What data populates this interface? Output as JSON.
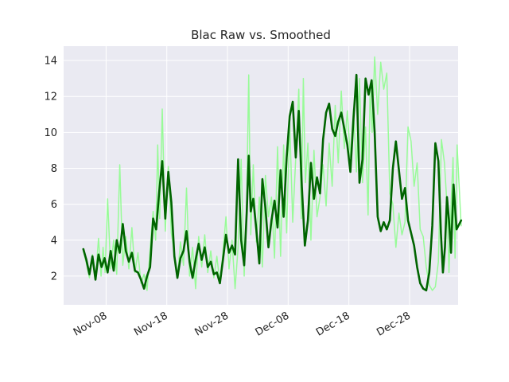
{
  "chart_data": {
    "type": "line",
    "title": "Blac Raw vs. Smoothed",
    "xlabel": "",
    "ylabel": "",
    "x_axis": {
      "kind": "date",
      "range": [
        "2023-11-01",
        "2024-01-05"
      ],
      "tick_labels": [
        "Nov-08",
        "Nov-18",
        "Nov-28",
        "Dec-08",
        "Dec-18",
        "Dec-28"
      ],
      "tick_dates": [
        "2023-11-08",
        "2023-11-18",
        "2023-11-28",
        "2023-12-08",
        "2023-12-18",
        "2023-12-28"
      ]
    },
    "y_axis": {
      "range": [
        0.4,
        14.8
      ],
      "ticks": [
        2,
        4,
        6,
        8,
        10,
        12,
        14
      ],
      "tick_labels": [
        "2",
        "4",
        "6",
        "8",
        "10",
        "12",
        "14"
      ]
    },
    "grid": true,
    "legend": "none",
    "background": "#eaeaf2",
    "series": [
      {
        "style": "raw",
        "color": "#98fb98",
        "points": [
          [
            "2023-11-04",
            3.4
          ],
          [
            "2023-11-04",
            2.7
          ],
          [
            "2023-11-05",
            1.9
          ],
          [
            "2023-11-05",
            3.2
          ],
          [
            "2023-11-06",
            1.8
          ],
          [
            "2023-11-06",
            4.1
          ],
          [
            "2023-11-07",
            2.0
          ],
          [
            "2023-11-07",
            3.6
          ],
          [
            "2023-11-07",
            2.2
          ],
          [
            "2023-11-08",
            6.3
          ],
          [
            "2023-11-08",
            2.4
          ],
          [
            "2023-11-09",
            4.0
          ],
          [
            "2023-11-09",
            2.1
          ],
          [
            "2023-11-10",
            8.2
          ],
          [
            "2023-11-10",
            2.6
          ],
          [
            "2023-11-11",
            4.2
          ],
          [
            "2023-11-11",
            2.4
          ],
          [
            "2023-11-12",
            4.7
          ],
          [
            "2023-11-12",
            2.2
          ],
          [
            "2023-11-13",
            3.3
          ],
          [
            "2023-11-13",
            1.6
          ],
          [
            "2023-11-14",
            2.1
          ],
          [
            "2023-11-14",
            1.2
          ],
          [
            "2023-11-15",
            3.5
          ],
          [
            "2023-11-15",
            5.6
          ],
          [
            "2023-11-16",
            4.0
          ],
          [
            "2023-11-16",
            9.3
          ],
          [
            "2023-11-16",
            5.2
          ],
          [
            "2023-11-17",
            11.3
          ],
          [
            "2023-11-17",
            4.5
          ],
          [
            "2023-11-18",
            8.1
          ],
          [
            "2023-11-18",
            4.4
          ],
          [
            "2023-11-19",
            3.3
          ],
          [
            "2023-11-19",
            1.9
          ],
          [
            "2023-11-20",
            3.9
          ],
          [
            "2023-11-20",
            2.6
          ],
          [
            "2023-11-21",
            6.9
          ],
          [
            "2023-11-21",
            2.0
          ],
          [
            "2023-11-22",
            3.6
          ],
          [
            "2023-11-22",
            1.3
          ],
          [
            "2023-11-23",
            4.2
          ],
          [
            "2023-11-23",
            2.5
          ],
          [
            "2023-11-24",
            4.3
          ],
          [
            "2023-11-24",
            2.2
          ],
          [
            "2023-11-25",
            3.4
          ],
          [
            "2023-11-25",
            1.9
          ],
          [
            "2023-11-26",
            3.1
          ],
          [
            "2023-11-26",
            1.6
          ],
          [
            "2023-11-27",
            3.3
          ],
          [
            "2023-11-27",
            5.3
          ],
          [
            "2023-11-28",
            2.4
          ],
          [
            "2023-11-28",
            4.0
          ],
          [
            "2023-11-29",
            1.3
          ],
          [
            "2023-11-29",
            3.6
          ],
          [
            "2023-11-30",
            8.5
          ],
          [
            "2023-11-30",
            2.0
          ],
          [
            "2023-12-01",
            6.2
          ],
          [
            "2023-12-01",
            13.2
          ],
          [
            "2023-12-01",
            4.3
          ],
          [
            "2023-12-02",
            8.2
          ],
          [
            "2023-12-02",
            3.9
          ],
          [
            "2023-12-03",
            6.4
          ],
          [
            "2023-12-03",
            2.5
          ],
          [
            "2023-12-04",
            7.6
          ],
          [
            "2023-12-04",
            5.3
          ],
          [
            "2023-12-05",
            6.4
          ],
          [
            "2023-12-05",
            3.0
          ],
          [
            "2023-12-06",
            9.2
          ],
          [
            "2023-12-06",
            3.1
          ],
          [
            "2023-12-07",
            9.3
          ],
          [
            "2023-12-07",
            4.4
          ],
          [
            "2023-12-08",
            10.6
          ],
          [
            "2023-12-08",
            5.0
          ],
          [
            "2023-12-09",
            8.6
          ],
          [
            "2023-12-09",
            12.4
          ],
          [
            "2023-12-10",
            5.2
          ],
          [
            "2023-12-10",
            13.0
          ],
          [
            "2023-12-10",
            7.2
          ],
          [
            "2023-12-11",
            9.4
          ],
          [
            "2023-12-11",
            4.0
          ],
          [
            "2023-12-12",
            9.0
          ],
          [
            "2023-12-12",
            5.3
          ],
          [
            "2023-12-13",
            6.4
          ],
          [
            "2023-12-13",
            8.2
          ],
          [
            "2023-12-14",
            5.9
          ],
          [
            "2023-12-14",
            9.4
          ],
          [
            "2023-12-15",
            7.0
          ],
          [
            "2023-12-15",
            11.5
          ],
          [
            "2023-12-16",
            8.3
          ],
          [
            "2023-12-16",
            12.3
          ],
          [
            "2023-12-17",
            9.1
          ],
          [
            "2023-12-17",
            11.2
          ],
          [
            "2023-12-18",
            8.6
          ],
          [
            "2023-12-18",
            11.3
          ],
          [
            "2023-12-19",
            7.8
          ],
          [
            "2023-12-19",
            13.0
          ],
          [
            "2023-12-20",
            7.2
          ],
          [
            "2023-12-20",
            10.3
          ],
          [
            "2023-12-21",
            5.4
          ],
          [
            "2023-12-21",
            12.4
          ],
          [
            "2023-12-21",
            10.0
          ],
          [
            "2023-12-22",
            14.2
          ],
          [
            "2023-12-22",
            11.0
          ],
          [
            "2023-12-23",
            13.9
          ],
          [
            "2023-12-23",
            12.4
          ],
          [
            "2023-12-24",
            13.3
          ],
          [
            "2023-12-24",
            6.6
          ],
          [
            "2023-12-25",
            6.0
          ],
          [
            "2023-12-25",
            3.6
          ],
          [
            "2023-12-26",
            5.5
          ],
          [
            "2023-12-26",
            4.3
          ],
          [
            "2023-12-27",
            5.0
          ],
          [
            "2023-12-27",
            10.3
          ],
          [
            "2023-12-28",
            9.5
          ],
          [
            "2023-12-28",
            7.0
          ],
          [
            "2023-12-29",
            8.3
          ],
          [
            "2023-12-29",
            4.6
          ],
          [
            "2023-12-30",
            4.2
          ],
          [
            "2023-12-30",
            2.5
          ],
          [
            "2023-12-31",
            1.5
          ],
          [
            "2023-12-31",
            1.2
          ],
          [
            "2024-01-01",
            1.4
          ],
          [
            "2024-01-01",
            2.8
          ],
          [
            "2024-01-02",
            9.6
          ],
          [
            "2024-01-02",
            8.3
          ],
          [
            "2024-01-03",
            6.0
          ],
          [
            "2024-01-03",
            2.2
          ],
          [
            "2024-01-03",
            5.9
          ],
          [
            "2024-01-04",
            8.6
          ],
          [
            "2024-01-04",
            3.0
          ],
          [
            "2024-01-04",
            9.3
          ],
          [
            "2024-01-05",
            4.8
          ]
        ]
      },
      {
        "style": "smoothed",
        "color": "#006400",
        "points": [
          [
            "2023-11-04",
            3.5
          ],
          [
            "2023-11-04",
            2.9
          ],
          [
            "2023-11-05",
            2.1
          ],
          [
            "2023-11-05",
            3.1
          ],
          [
            "2023-11-06",
            1.8
          ],
          [
            "2023-11-06",
            3.2
          ],
          [
            "2023-11-07",
            2.5
          ],
          [
            "2023-11-07",
            3.0
          ],
          [
            "2023-11-08",
            2.2
          ],
          [
            "2023-11-08",
            3.4
          ],
          [
            "2023-11-09",
            2.3
          ],
          [
            "2023-11-09",
            4.0
          ],
          [
            "2023-11-10",
            3.3
          ],
          [
            "2023-11-10",
            4.9
          ],
          [
            "2023-11-11",
            3.4
          ],
          [
            "2023-11-11",
            2.8
          ],
          [
            "2023-11-12",
            3.3
          ],
          [
            "2023-11-12",
            2.3
          ],
          [
            "2023-11-13",
            2.2
          ],
          [
            "2023-11-13",
            1.8
          ],
          [
            "2023-11-14",
            1.3
          ],
          [
            "2023-11-14",
            2.0
          ],
          [
            "2023-11-15",
            2.5
          ],
          [
            "2023-11-15",
            5.2
          ],
          [
            "2023-11-16",
            4.6
          ],
          [
            "2023-11-16",
            6.7
          ],
          [
            "2023-11-17",
            8.4
          ],
          [
            "2023-11-17",
            5.2
          ],
          [
            "2023-11-18",
            7.8
          ],
          [
            "2023-11-18",
            6.1
          ],
          [
            "2023-11-19",
            3.1
          ],
          [
            "2023-11-19",
            1.9
          ],
          [
            "2023-11-20",
            3.0
          ],
          [
            "2023-11-20",
            3.4
          ],
          [
            "2023-11-21",
            4.5
          ],
          [
            "2023-11-21",
            2.8
          ],
          [
            "2023-11-22",
            1.9
          ],
          [
            "2023-11-22",
            2.9
          ],
          [
            "2023-11-23",
            3.8
          ],
          [
            "2023-11-23",
            2.9
          ],
          [
            "2023-11-24",
            3.6
          ],
          [
            "2023-11-24",
            2.5
          ],
          [
            "2023-11-25",
            2.8
          ],
          [
            "2023-11-25",
            2.1
          ],
          [
            "2023-11-26",
            2.2
          ],
          [
            "2023-11-26",
            1.6
          ],
          [
            "2023-11-27",
            2.9
          ],
          [
            "2023-11-27",
            4.3
          ],
          [
            "2023-11-28",
            3.3
          ],
          [
            "2023-11-28",
            3.7
          ],
          [
            "2023-11-29",
            3.2
          ],
          [
            "2023-11-29",
            8.5
          ],
          [
            "2023-11-30",
            4.0
          ],
          [
            "2023-11-30",
            2.6
          ],
          [
            "2023-12-01",
            5.5
          ],
          [
            "2023-12-01",
            8.7
          ],
          [
            "2023-12-01",
            5.6
          ],
          [
            "2023-12-02",
            6.3
          ],
          [
            "2023-12-02",
            4.6
          ],
          [
            "2023-12-03",
            2.7
          ],
          [
            "2023-12-03",
            7.4
          ],
          [
            "2023-12-04",
            5.8
          ],
          [
            "2023-12-04",
            3.6
          ],
          [
            "2023-12-05",
            5.1
          ],
          [
            "2023-12-05",
            6.2
          ],
          [
            "2023-12-06",
            4.7
          ],
          [
            "2023-12-06",
            7.9
          ],
          [
            "2023-12-07",
            5.3
          ],
          [
            "2023-12-07",
            8.6
          ],
          [
            "2023-12-08",
            10.9
          ],
          [
            "2023-12-08",
            11.7
          ],
          [
            "2023-12-09",
            8.6
          ],
          [
            "2023-12-09",
            11.2
          ],
          [
            "2023-12-10",
            7.0
          ],
          [
            "2023-12-10",
            3.7
          ],
          [
            "2023-12-11",
            5.1
          ],
          [
            "2023-12-11",
            8.3
          ],
          [
            "2023-12-12",
            6.3
          ],
          [
            "2023-12-12",
            7.5
          ],
          [
            "2023-12-13",
            6.6
          ],
          [
            "2023-12-13",
            9.6
          ],
          [
            "2023-12-14",
            11.1
          ],
          [
            "2023-12-14",
            11.6
          ],
          [
            "2023-12-15",
            10.2
          ],
          [
            "2023-12-15",
            9.8
          ],
          [
            "2023-12-16",
            10.6
          ],
          [
            "2023-12-16",
            11.1
          ],
          [
            "2023-12-17",
            10.2
          ],
          [
            "2023-12-17",
            9.3
          ],
          [
            "2023-12-18",
            7.8
          ],
          [
            "2023-12-18",
            10.7
          ],
          [
            "2023-12-19",
            13.2
          ],
          [
            "2023-12-19",
            7.2
          ],
          [
            "2023-12-20",
            8.5
          ],
          [
            "2023-12-20",
            13.0
          ],
          [
            "2023-12-21",
            12.1
          ],
          [
            "2023-12-21",
            12.9
          ],
          [
            "2023-12-22",
            10.0
          ],
          [
            "2023-12-22",
            5.3
          ],
          [
            "2023-12-23",
            4.5
          ],
          [
            "2023-12-23",
            5.0
          ],
          [
            "2023-12-24",
            4.6
          ],
          [
            "2023-12-24",
            5.1
          ],
          [
            "2023-12-25",
            8.0
          ],
          [
            "2023-12-25",
            9.5
          ],
          [
            "2023-12-26",
            7.9
          ],
          [
            "2023-12-26",
            6.3
          ],
          [
            "2023-12-27",
            6.9
          ],
          [
            "2023-12-27",
            5.1
          ],
          [
            "2023-12-28",
            4.4
          ],
          [
            "2023-12-28",
            3.7
          ],
          [
            "2023-12-29",
            2.5
          ],
          [
            "2023-12-29",
            1.6
          ],
          [
            "2023-12-30",
            1.3
          ],
          [
            "2023-12-30",
            1.2
          ],
          [
            "2023-12-31",
            2.2
          ],
          [
            "2023-12-31",
            4.8
          ],
          [
            "2024-01-01",
            9.4
          ],
          [
            "2024-01-01",
            8.4
          ],
          [
            "2024-01-02",
            4.4
          ],
          [
            "2024-01-02",
            2.2
          ],
          [
            "2024-01-02",
            3.6
          ],
          [
            "2024-01-03",
            6.4
          ],
          [
            "2024-01-03",
            5.1
          ],
          [
            "2024-01-03",
            3.3
          ],
          [
            "2024-01-04",
            7.1
          ],
          [
            "2024-01-04",
            4.6
          ],
          [
            "2024-01-05",
            5.1
          ]
        ]
      }
    ]
  }
}
